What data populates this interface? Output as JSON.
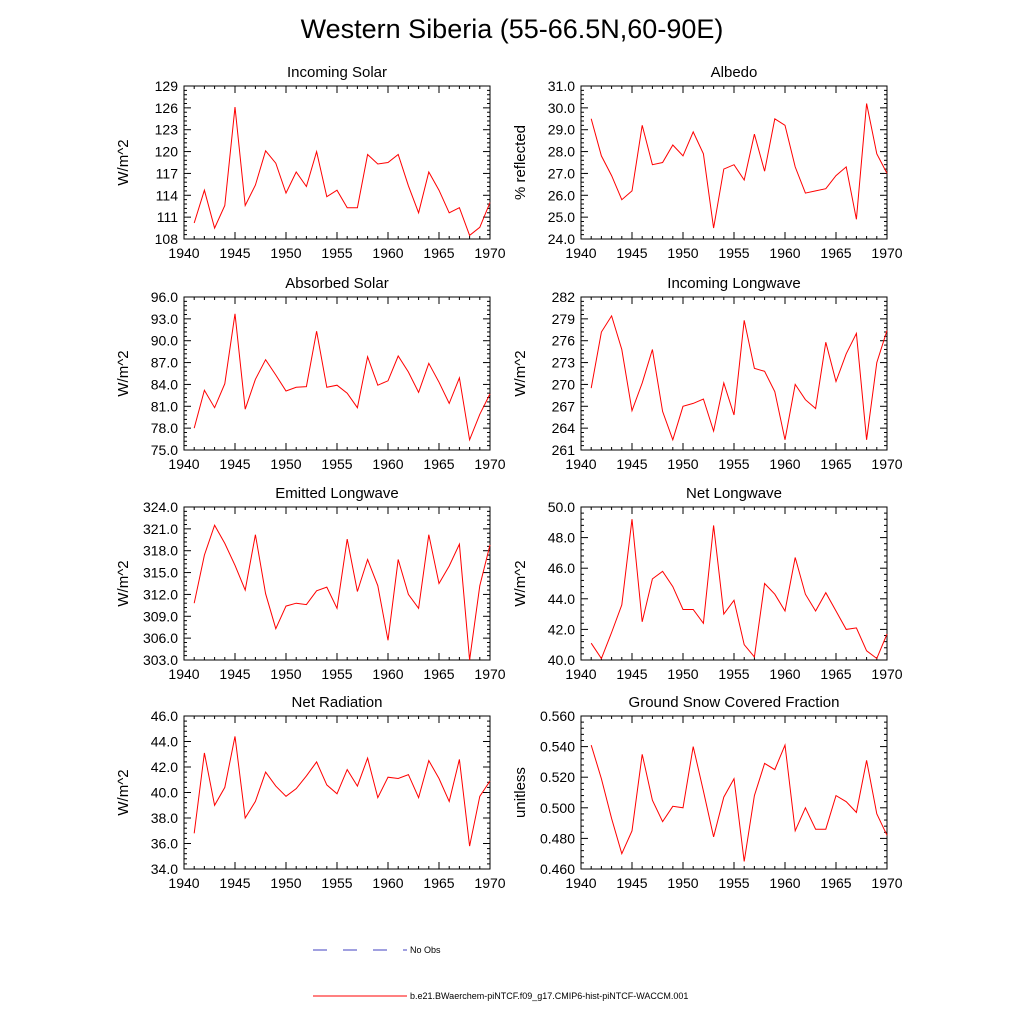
{
  "title": "Western Siberia (55-66.5N,60-90E)",
  "colors": {
    "model_line": "#ff0000",
    "obs_line": "#4040c0",
    "axis": "#000000"
  },
  "legend": {
    "obs_label": "No Obs",
    "model_label": "b.e21.BWaerchem-piNTCF.f09_g17.CMIP6-hist-piNTCF-WACCM.001"
  },
  "chart_data": [
    {
      "type": "line",
      "title": "Incoming Solar",
      "ylabel": "W/m^2",
      "xlim": [
        1940,
        1970
      ],
      "ylim": [
        108,
        129
      ],
      "xticks": [
        "1940",
        "1945",
        "1950",
        "1955",
        "1960",
        "1965",
        "1970"
      ],
      "yticks": [
        "108",
        "111",
        "114",
        "117",
        "120",
        "123",
        "126",
        "129"
      ],
      "x": [
        1941,
        1942,
        1943,
        1944,
        1945,
        1946,
        1947,
        1948,
        1949,
        1950,
        1951,
        1952,
        1953,
        1954,
        1955,
        1956,
        1957,
        1958,
        1959,
        1960,
        1961,
        1962,
        1963,
        1964,
        1965,
        1966,
        1967,
        1968,
        1969,
        1970
      ],
      "series": [
        {
          "values": [
            110.2,
            114.7,
            109.5,
            112.6,
            126.1,
            112.6,
            115.4,
            120.1,
            118.4,
            114.3,
            117.2,
            115.2,
            120.0,
            113.8,
            114.7,
            112.3,
            112.3,
            119.6,
            118.3,
            118.5,
            119.6,
            115.3,
            111.6,
            117.2,
            114.7,
            111.6,
            112.3,
            108.5,
            109.6,
            113.0
          ]
        }
      ]
    },
    {
      "type": "line",
      "title": "Albedo",
      "ylabel": "% reflected",
      "xlim": [
        1940,
        1970
      ],
      "ylim": [
        24.0,
        31.0
      ],
      "xticks": [
        "1940",
        "1945",
        "1950",
        "1955",
        "1960",
        "1965",
        "1970"
      ],
      "yticks": [
        "24.0",
        "25.0",
        "26.0",
        "27.0",
        "28.0",
        "29.0",
        "30.0",
        "31.0"
      ],
      "x": [
        1941,
        1942,
        1943,
        1944,
        1945,
        1946,
        1947,
        1948,
        1949,
        1950,
        1951,
        1952,
        1953,
        1954,
        1955,
        1956,
        1957,
        1958,
        1959,
        1960,
        1961,
        1962,
        1963,
        1964,
        1965,
        1966,
        1967,
        1968,
        1969,
        1970
      ],
      "series": [
        {
          "values": [
            29.5,
            27.8,
            26.9,
            25.8,
            26.2,
            29.2,
            27.4,
            27.5,
            28.3,
            27.8,
            28.9,
            27.9,
            24.5,
            27.2,
            27.4,
            26.7,
            28.8,
            27.1,
            29.5,
            29.2,
            27.3,
            26.1,
            26.2,
            26.3,
            26.9,
            27.3,
            24.9,
            30.2,
            27.9,
            27.0
          ]
        }
      ]
    },
    {
      "type": "line",
      "title": "Absorbed Solar",
      "ylabel": "W/m^2",
      "xlim": [
        1940,
        1970
      ],
      "ylim": [
        75.0,
        96.0
      ],
      "xticks": [
        "1940",
        "1945",
        "1950",
        "1955",
        "1960",
        "1965",
        "1970"
      ],
      "yticks": [
        "75.0",
        "78.0",
        "81.0",
        "84.0",
        "87.0",
        "90.0",
        "93.0",
        "96.0"
      ],
      "x": [
        1941,
        1942,
        1943,
        1944,
        1945,
        1946,
        1947,
        1948,
        1949,
        1950,
        1951,
        1952,
        1953,
        1954,
        1955,
        1956,
        1957,
        1958,
        1959,
        1960,
        1961,
        1962,
        1963,
        1964,
        1965,
        1966,
        1967,
        1968,
        1969,
        1970
      ],
      "series": [
        {
          "values": [
            78.0,
            83.2,
            80.8,
            84.1,
            93.7,
            80.6,
            84.7,
            87.4,
            85.3,
            83.1,
            83.6,
            83.7,
            91.3,
            83.6,
            83.9,
            82.8,
            80.8,
            87.8,
            83.9,
            84.5,
            87.9,
            85.7,
            82.9,
            86.9,
            84.3,
            81.4,
            84.9,
            76.4,
            79.9,
            82.7
          ]
        }
      ]
    },
    {
      "type": "line",
      "title": "Incoming Longwave",
      "ylabel": "W/m^2",
      "xlim": [
        1940,
        1970
      ],
      "ylim": [
        261,
        282
      ],
      "xticks": [
        "1940",
        "1945",
        "1950",
        "1955",
        "1960",
        "1965",
        "1970"
      ],
      "yticks": [
        "261",
        "264",
        "267",
        "270",
        "273",
        "276",
        "279",
        "282"
      ],
      "x": [
        1941,
        1942,
        1943,
        1944,
        1945,
        1946,
        1947,
        1948,
        1949,
        1950,
        1951,
        1952,
        1953,
        1954,
        1955,
        1956,
        1957,
        1958,
        1959,
        1960,
        1961,
        1962,
        1963,
        1964,
        1965,
        1966,
        1967,
        1968,
        1969,
        1970
      ],
      "series": [
        {
          "values": [
            269.5,
            277.2,
            279.4,
            274.8,
            266.4,
            270.2,
            274.8,
            266.3,
            262.4,
            267.0,
            267.4,
            268.0,
            263.6,
            270.2,
            265.8,
            278.8,
            272.2,
            271.8,
            269.0,
            262.4,
            270.0,
            267.9,
            266.7,
            275.8,
            270.4,
            274.2,
            277.0,
            262.4,
            273.0,
            277.4
          ]
        }
      ]
    },
    {
      "type": "line",
      "title": "Emitted Longwave",
      "ylabel": "W/m^2",
      "xlim": [
        1940,
        1970
      ],
      "ylim": [
        303.0,
        324.0
      ],
      "xticks": [
        "1940",
        "1945",
        "1950",
        "1955",
        "1960",
        "1965",
        "1970"
      ],
      "yticks": [
        "303.0",
        "306.0",
        "309.0",
        "312.0",
        "315.0",
        "318.0",
        "321.0",
        "324.0"
      ],
      "x": [
        1941,
        1942,
        1943,
        1944,
        1945,
        1946,
        1947,
        1948,
        1949,
        1950,
        1951,
        1952,
        1953,
        1954,
        1955,
        1956,
        1957,
        1958,
        1959,
        1960,
        1961,
        1962,
        1963,
        1964,
        1965,
        1966,
        1967,
        1968,
        1969,
        1970
      ],
      "series": [
        {
          "values": [
            310.8,
            317.4,
            321.5,
            319.0,
            316.0,
            312.6,
            320.2,
            312.1,
            307.3,
            310.4,
            310.8,
            310.6,
            312.5,
            313.0,
            310.1,
            319.6,
            312.4,
            316.8,
            313.2,
            305.7,
            316.8,
            312.0,
            310.1,
            320.2,
            313.5,
            315.9,
            318.9,
            303.0,
            313.2,
            318.8
          ]
        }
      ]
    },
    {
      "type": "line",
      "title": "Net Longwave",
      "ylabel": "W/m^2",
      "xlim": [
        1940,
        1970
      ],
      "ylim": [
        40.0,
        50.0
      ],
      "xticks": [
        "1940",
        "1945",
        "1950",
        "1955",
        "1960",
        "1965",
        "1970"
      ],
      "yticks": [
        "40.0",
        "42.0",
        "44.0",
        "46.0",
        "48.0",
        "50.0"
      ],
      "x": [
        1941,
        1942,
        1943,
        1944,
        1945,
        1946,
        1947,
        1948,
        1949,
        1950,
        1951,
        1952,
        1953,
        1954,
        1955,
        1956,
        1957,
        1958,
        1959,
        1960,
        1961,
        1962,
        1963,
        1964,
        1965,
        1966,
        1967,
        1968,
        1969,
        1970
      ],
      "series": [
        {
          "values": [
            41.1,
            40.1,
            41.8,
            43.6,
            49.2,
            42.5,
            45.3,
            45.8,
            44.8,
            43.3,
            43.3,
            42.4,
            48.8,
            43.0,
            43.9,
            41.0,
            40.2,
            45.0,
            44.3,
            43.2,
            46.7,
            44.3,
            43.2,
            44.4,
            43.2,
            42.0,
            42.1,
            40.6,
            40.1,
            41.7
          ]
        }
      ]
    },
    {
      "type": "line",
      "title": "Net Radiation",
      "ylabel": "W/m^2",
      "xlim": [
        1940,
        1970
      ],
      "ylim": [
        34.0,
        46.0
      ],
      "xticks": [
        "1940",
        "1945",
        "1950",
        "1955",
        "1960",
        "1965",
        "1970"
      ],
      "yticks": [
        "34.0",
        "36.0",
        "38.0",
        "40.0",
        "42.0",
        "44.0",
        "46.0"
      ],
      "x": [
        1941,
        1942,
        1943,
        1944,
        1945,
        1946,
        1947,
        1948,
        1949,
        1950,
        1951,
        1952,
        1953,
        1954,
        1955,
        1956,
        1957,
        1958,
        1959,
        1960,
        1961,
        1962,
        1963,
        1964,
        1965,
        1966,
        1967,
        1968,
        1969,
        1970
      ],
      "series": [
        {
          "values": [
            36.8,
            43.1,
            39.0,
            40.4,
            44.4,
            38.0,
            39.3,
            41.6,
            40.5,
            39.7,
            40.3,
            41.3,
            42.4,
            40.6,
            39.9,
            41.8,
            40.5,
            42.7,
            39.6,
            41.2,
            41.1,
            41.4,
            39.6,
            42.5,
            41.1,
            39.3,
            42.6,
            35.8,
            39.7,
            40.9
          ]
        }
      ]
    },
    {
      "type": "line",
      "title": "Ground Snow Covered Fraction",
      "ylabel": "unitless",
      "xlim": [
        1940,
        1970
      ],
      "ylim": [
        0.46,
        0.56
      ],
      "xticks": [
        "1940",
        "1945",
        "1950",
        "1955",
        "1960",
        "1965",
        "1970"
      ],
      "yticks": [
        "0.460",
        "0.480",
        "0.500",
        "0.520",
        "0.540",
        "0.560"
      ],
      "x": [
        1941,
        1942,
        1943,
        1944,
        1945,
        1946,
        1947,
        1948,
        1949,
        1950,
        1951,
        1952,
        1953,
        1954,
        1955,
        1956,
        1957,
        1958,
        1959,
        1960,
        1961,
        1962,
        1963,
        1964,
        1965,
        1966,
        1967,
        1968,
        1969,
        1970
      ],
      "series": [
        {
          "values": [
            0.541,
            0.519,
            0.493,
            0.47,
            0.485,
            0.535,
            0.505,
            0.491,
            0.501,
            0.5,
            0.54,
            0.511,
            0.481,
            0.507,
            0.519,
            0.465,
            0.508,
            0.529,
            0.525,
            0.541,
            0.485,
            0.5,
            0.486,
            0.486,
            0.508,
            0.504,
            0.497,
            0.531,
            0.496,
            0.482
          ]
        }
      ]
    }
  ]
}
